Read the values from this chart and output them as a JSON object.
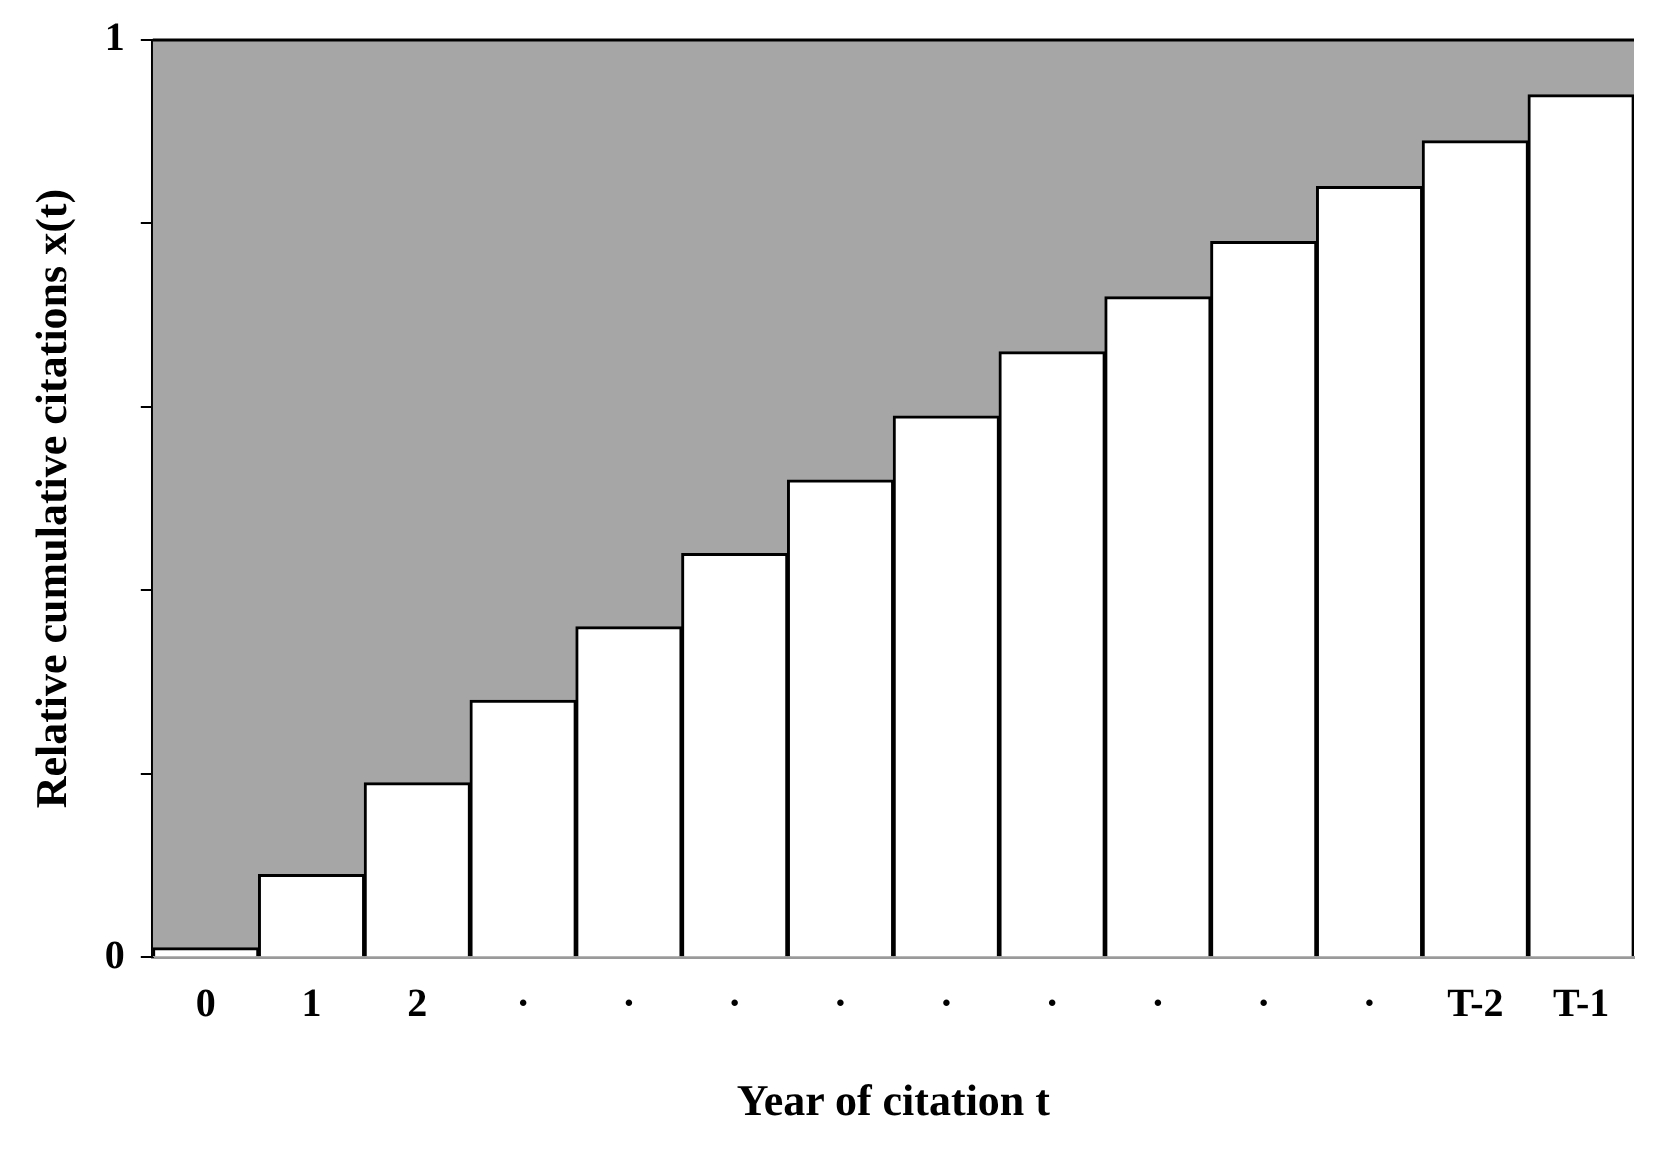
{
  "chart_data": {
    "type": "bar",
    "xlabel": "Year of citation t",
    "ylabel": "Relative cumulative citations x(t)",
    "categories": [
      "0",
      "1",
      "2",
      "·",
      "·",
      "·",
      "·",
      "·",
      "·",
      "·",
      "·",
      "·",
      "T-2",
      "T-1"
    ],
    "values": [
      0.01,
      0.09,
      0.19,
      0.28,
      0.36,
      0.44,
      0.52,
      0.59,
      0.66,
      0.72,
      0.78,
      0.84,
      0.89,
      0.94
    ],
    "color": "#ffffff",
    "ylim": [
      0,
      1
    ],
    "yticks": [
      0,
      {
        "value": 0.2,
        "label": null
      },
      {
        "value": 0.4,
        "label": null
      },
      {
        "value": 0.6,
        "label": null
      },
      {
        "value": 0.8,
        "label": null
      },
      1
    ],
    "bands": [
      {
        "axis": "y",
        "from": 0,
        "to": 1,
        "color": "#a6a6a6"
      }
    ],
    "grid": false,
    "legend": false
  }
}
